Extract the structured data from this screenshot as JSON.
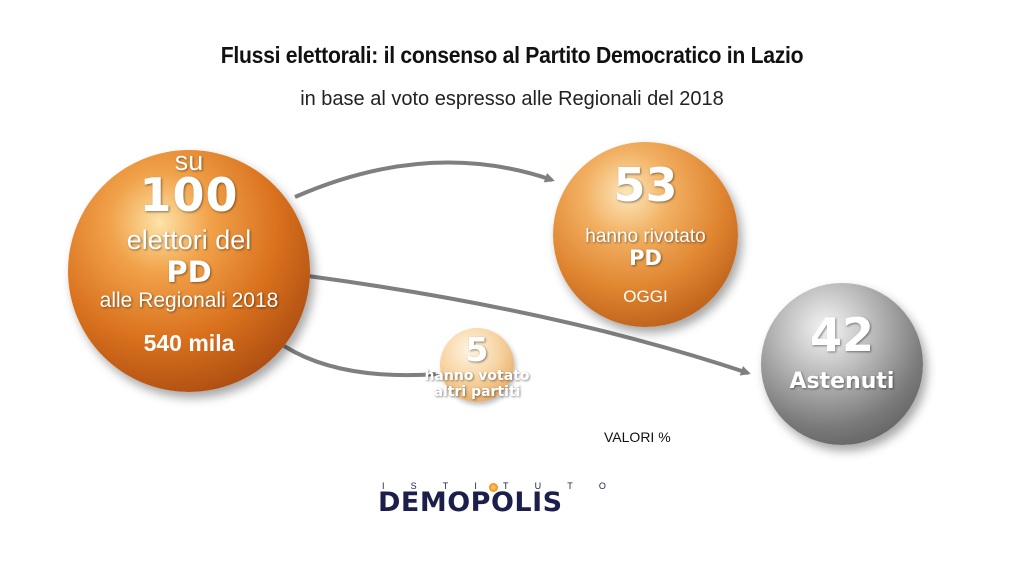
{
  "title": "Flussi elettorali: il consenso al Partito Democratico in Lazio",
  "subtitle": "in base al voto espresso alle Regionali del 2018",
  "source": {
    "su": "su",
    "value": "100",
    "line1": "elettori del",
    "party": "PD",
    "line2": "alle Regionali 2018",
    "voters": "540 mila"
  },
  "flows": [
    {
      "id": "revoted",
      "value": "53",
      "line1": "hanno rivotato",
      "line2": "PD",
      "line3": "OGGI"
    },
    {
      "id": "abstained",
      "value": "42",
      "line1": "Astenuti"
    },
    {
      "id": "other",
      "value": "5",
      "line1": "hanno votato",
      "line2": "altri partiti"
    }
  ],
  "note": "VALORI %",
  "logo": {
    "top_letters": [
      "I",
      "S",
      "T",
      "I",
      "T",
      "U",
      "T",
      "O"
    ],
    "name": "DEMOPOLIS"
  },
  "colors": {
    "orange": "#d9711d",
    "gray": "#7a7a7a",
    "arrow": "#7f7f7f",
    "logo": "#1b1f4a"
  }
}
